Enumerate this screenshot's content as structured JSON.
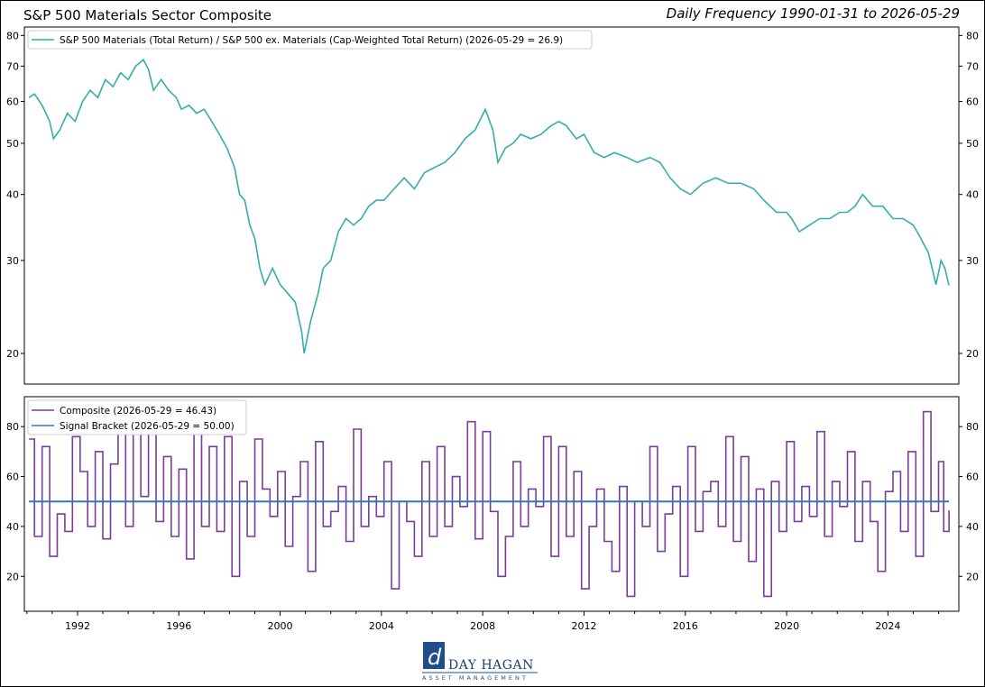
{
  "header": {
    "title": "S&P 500 Materials Sector Composite",
    "frequency": "Daily Frequency 1990-01-31 to 2026-05-29"
  },
  "chart_data": [
    {
      "type": "line",
      "y_scale": "log",
      "ylim": [
        17.5,
        83
      ],
      "y_ticks": [
        "20",
        "30",
        "40",
        "50",
        "60",
        "70",
        "80"
      ],
      "y_tick_values": [
        20,
        30,
        40,
        50,
        60,
        70,
        80
      ],
      "legend_position": "top-left",
      "colors": {
        "series": "#35ada8"
      },
      "series": [
        {
          "name": "S&P 500 Materials (Total Return) / S&P 500 ex. Materials (Cap-Weighted Total Return) (2026-05-29 = 26.9)",
          "x": [
            1990.08,
            1990.3,
            1990.6,
            1990.9,
            1991.05,
            1991.3,
            1991.6,
            1991.9,
            1992.2,
            1992.5,
            1992.8,
            1993.1,
            1993.4,
            1993.7,
            1994.0,
            1994.3,
            1994.6,
            1994.8,
            1995.0,
            1995.3,
            1995.6,
            1995.9,
            1996.1,
            1996.4,
            1996.7,
            1997.0,
            1997.3,
            1997.6,
            1997.9,
            1998.2,
            1998.4,
            1998.6,
            1998.8,
            1999.0,
            1999.2,
            1999.4,
            1999.7,
            2000.0,
            2000.3,
            2000.6,
            2000.85,
            2000.95,
            2001.2,
            2001.5,
            2001.7,
            2002.0,
            2002.3,
            2002.6,
            2002.9,
            2003.2,
            2003.5,
            2003.8,
            2004.1,
            2004.5,
            2004.9,
            2005.3,
            2005.7,
            2006.1,
            2006.5,
            2006.9,
            2007.3,
            2007.7,
            2008.1,
            2008.4,
            2008.6,
            2008.9,
            2009.2,
            2009.5,
            2009.9,
            2010.3,
            2010.7,
            2011.0,
            2011.3,
            2011.7,
            2012.0,
            2012.4,
            2012.8,
            2013.2,
            2013.7,
            2014.1,
            2014.6,
            2015.0,
            2015.4,
            2015.8,
            2016.2,
            2016.7,
            2017.2,
            2017.7,
            2018.2,
            2018.7,
            2019.1,
            2019.6,
            2020.0,
            2020.2,
            2020.5,
            2020.9,
            2021.3,
            2021.7,
            2022.1,
            2022.4,
            2022.7,
            2023.0,
            2023.4,
            2023.8,
            2024.2,
            2024.6,
            2025.0,
            2025.3,
            2025.6,
            2025.9,
            2026.1,
            2026.25,
            2026.41
          ],
          "values": [
            61,
            62,
            59,
            55,
            51,
            53,
            57,
            55,
            60,
            63,
            61,
            66,
            64,
            68,
            66,
            70,
            72,
            69,
            63,
            66,
            63,
            61,
            58,
            59,
            57,
            58,
            55,
            52,
            49,
            45,
            40,
            39,
            35,
            33,
            29,
            27,
            29,
            27,
            26,
            25,
            22,
            20,
            23,
            26,
            29,
            30,
            34,
            36,
            35,
            36,
            38,
            39,
            39,
            41,
            43,
            41,
            44,
            45,
            46,
            48,
            51,
            53,
            58,
            53,
            46,
            49,
            50,
            52,
            51,
            52,
            54,
            55,
            54,
            51,
            52,
            48,
            47,
            48,
            47,
            46,
            47,
            46,
            43,
            41,
            40,
            42,
            43,
            42,
            42,
            41,
            39,
            37,
            37,
            36,
            34,
            35,
            36,
            36,
            37,
            37,
            38,
            40,
            38,
            38,
            36,
            36,
            35,
            33,
            31,
            27,
            30,
            29,
            26.9
          ]
        }
      ]
    },
    {
      "type": "line",
      "ylim": [
        6,
        92
      ],
      "y_ticks": [
        "20",
        "40",
        "60",
        "80"
      ],
      "y_tick_values": [
        20,
        40,
        60,
        80
      ],
      "x_ticks": [
        "1992",
        "1996",
        "2000",
        "2004",
        "2008",
        "2012",
        "2016",
        "2020",
        "2024"
      ],
      "x_tick_values": [
        1992,
        1996,
        2000,
        2004,
        2008,
        2012,
        2016,
        2020,
        2024
      ],
      "xlim": [
        1989.9,
        2026.8
      ],
      "legend_position": "top-left",
      "colors": {
        "composite": "#7a3c9c",
        "bracket": "#2e7bb4"
      },
      "series": [
        {
          "name": "Composite (2026-05-29 = 46.43)",
          "x": [
            1990.08,
            1990.3,
            1990.6,
            1990.9,
            1991.2,
            1991.5,
            1991.8,
            1992.1,
            1992.4,
            1992.7,
            1993.0,
            1993.3,
            1993.6,
            1993.9,
            1994.2,
            1994.5,
            1994.8,
            1995.1,
            1995.4,
            1995.7,
            1996.0,
            1996.3,
            1996.6,
            1996.9,
            1997.2,
            1997.5,
            1997.8,
            1998.1,
            1998.4,
            1998.7,
            1999.0,
            1999.3,
            1999.6,
            1999.9,
            2000.2,
            2000.5,
            2000.8,
            2001.1,
            2001.4,
            2001.7,
            2002.0,
            2002.3,
            2002.6,
            2002.9,
            2003.2,
            2003.5,
            2003.8,
            2004.1,
            2004.4,
            2004.7,
            2005.0,
            2005.3,
            2005.6,
            2005.9,
            2006.2,
            2006.5,
            2006.8,
            2007.1,
            2007.4,
            2007.7,
            2008.0,
            2008.3,
            2008.6,
            2008.9,
            2009.2,
            2009.5,
            2009.8,
            2010.1,
            2010.4,
            2010.7,
            2011.0,
            2011.3,
            2011.6,
            2011.9,
            2012.2,
            2012.5,
            2012.8,
            2013.1,
            2013.4,
            2013.7,
            2014.0,
            2014.3,
            2014.6,
            2014.9,
            2015.2,
            2015.5,
            2015.8,
            2016.1,
            2016.4,
            2016.7,
            2017.0,
            2017.3,
            2017.6,
            2017.9,
            2018.2,
            2018.5,
            2018.8,
            2019.1,
            2019.4,
            2019.7,
            2020.0,
            2020.3,
            2020.6,
            2020.9,
            2021.2,
            2021.5,
            2021.8,
            2022.1,
            2022.4,
            2022.7,
            2023.0,
            2023.3,
            2023.6,
            2023.9,
            2024.2,
            2024.5,
            2024.8,
            2025.1,
            2025.4,
            2025.7,
            2026.0,
            2026.2,
            2026.41
          ],
          "values": [
            75,
            36,
            72,
            28,
            45,
            38,
            76,
            62,
            40,
            70,
            35,
            65,
            82,
            40,
            84,
            52,
            79,
            42,
            68,
            36,
            63,
            27,
            78,
            40,
            72,
            38,
            76,
            20,
            58,
            36,
            75,
            55,
            44,
            62,
            32,
            52,
            66,
            22,
            74,
            40,
            46,
            56,
            34,
            79,
            40,
            52,
            44,
            66,
            15,
            50,
            42,
            28,
            66,
            36,
            72,
            40,
            60,
            48,
            82,
            35,
            78,
            46,
            20,
            36,
            66,
            40,
            55,
            48,
            76,
            28,
            72,
            36,
            62,
            15,
            40,
            55,
            34,
            22,
            56,
            12,
            50,
            40,
            72,
            30,
            45,
            56,
            20,
            72,
            38,
            54,
            58,
            40,
            76,
            34,
            68,
            26,
            55,
            12,
            58,
            38,
            74,
            42,
            56,
            44,
            78,
            36,
            58,
            48,
            70,
            34,
            58,
            42,
            22,
            54,
            62,
            38,
            70,
            28,
            86,
            46,
            66,
            38,
            46.43
          ]
        },
        {
          "name": "Signal Bracket (2026-05-29 = 50.00)",
          "x": [
            1990.08,
            2026.41
          ],
          "values": [
            50,
            50
          ]
        }
      ]
    }
  ],
  "logo": {
    "line1": "DAY HAGAN",
    "line2": "ASSET MANAGEMENT"
  }
}
